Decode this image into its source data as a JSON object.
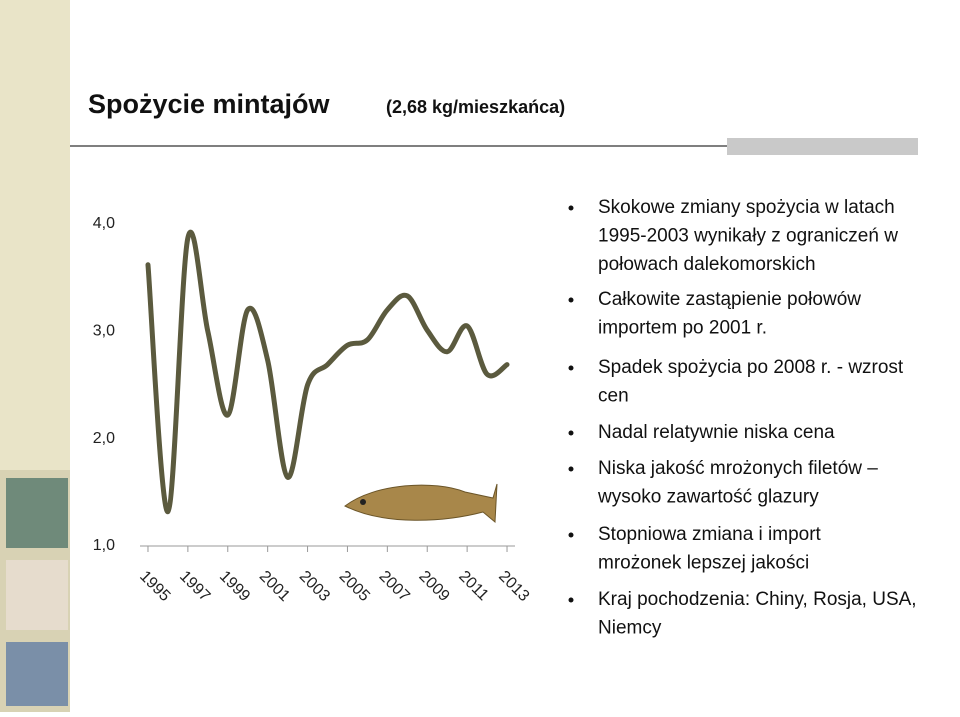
{
  "slide": {
    "title": "Spożycie mintajów",
    "subtitle": "(2,68 kg/mieszkańca)",
    "bullets": [
      [
        "Skokowe zmiany spożycia w latach",
        "1995-2003 wynikały z ograniczeń w",
        "połowach dalekomorskich"
      ],
      [
        "Całkowite zastąpienie połowów",
        "importem po 2001 r."
      ],
      [
        "Spadek spożycia po 2008 r.  - wzrost",
        "cen"
      ],
      [
        "Nadal relatywnie niska cena"
      ],
      [
        "Niska jakość mrożonych filetów –",
        "wysoko zawartość glazury"
      ],
      [
        "Stopniowa zmiana i import",
        "mrożonek lepszej jakości"
      ],
      [
        "Kraj pochodzenia: Chiny, Rosja, USA,",
        "Niemcy"
      ]
    ]
  },
  "chart_data": {
    "type": "line",
    "x": [
      1995,
      1996,
      1997,
      1998,
      1999,
      2000,
      2001,
      2002,
      2003,
      2004,
      2005,
      2006,
      2007,
      2008,
      2009,
      2010,
      2011,
      2012,
      2013
    ],
    "series": [
      {
        "color": "#5b5a3e",
        "values": [
          3.62,
          1.32,
          3.87,
          3.0,
          2.22,
          3.2,
          2.73,
          1.64,
          2.5,
          2.69,
          2.87,
          2.92,
          3.2,
          3.33,
          3.01,
          2.81,
          3.05,
          2.6,
          2.69
        ]
      }
    ],
    "xlim": [
      1994.6,
      2013.4
    ],
    "xticks": [
      1995,
      1997,
      1999,
      2001,
      2003,
      2005,
      2007,
      2009,
      2011,
      2013
    ],
    "ylim": [
      1,
      4
    ],
    "yticks": [
      {
        "value": 1,
        "label": "1,0"
      },
      {
        "value": 2,
        "label": "2,0"
      },
      {
        "value": 3,
        "label": "3,0"
      },
      {
        "value": 4,
        "label": "4,0"
      }
    ]
  }
}
